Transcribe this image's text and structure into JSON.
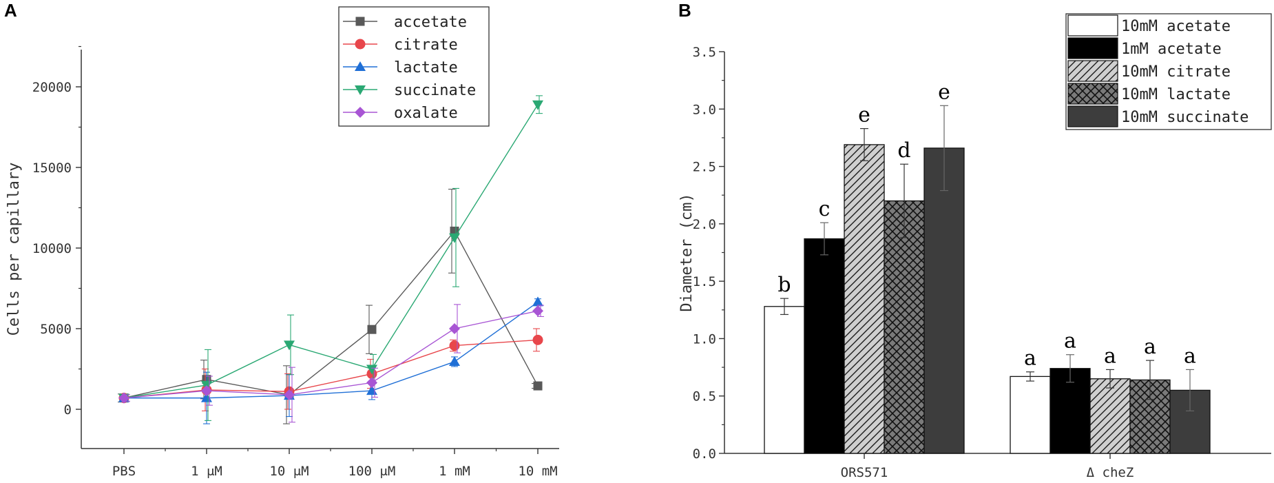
{
  "panels": {
    "a_label": "A",
    "b_label": "B"
  },
  "chart_data": [
    {
      "type": "line",
      "panel": "A",
      "title": "",
      "xlabel": "",
      "ylabel": "Cells per capillary",
      "categories": [
        "PBS",
        "1 μM",
        "10 μM",
        "100 μM",
        "1 mM",
        "10 mM"
      ],
      "ylim": [
        -2500,
        22500
      ],
      "yticks": [
        0,
        5000,
        10000,
        15000,
        20000
      ],
      "legend_position": "top-right",
      "series": [
        {
          "name": "accetate",
          "color": "#595959",
          "marker": "square",
          "values": [
            700,
            1850,
            900,
            4950,
            11050,
            1450
          ],
          "errors": [
            250,
            1200,
            1800,
            1500,
            2600,
            150
          ]
        },
        {
          "name": "citrate",
          "color": "#e8464b",
          "marker": "circle",
          "values": [
            700,
            1200,
            1100,
            2200,
            3950,
            4300
          ],
          "errors": [
            200,
            1300,
            1100,
            900,
            350,
            700
          ]
        },
        {
          "name": "lactate",
          "color": "#1f6fd6",
          "marker": "triangle-up",
          "values": [
            700,
            700,
            850,
            1150,
            2950,
            6650
          ],
          "errors": [
            200,
            1600,
            1300,
            550,
            300,
            200
          ]
        },
        {
          "name": "succinate",
          "color": "#2aa873",
          "marker": "triangle-down",
          "values": [
            700,
            1500,
            4000,
            2500,
            10650,
            18900
          ],
          "errors": [
            200,
            2200,
            1850,
            900,
            3050,
            550
          ]
        },
        {
          "name": "oxalate",
          "color": "#a855d4",
          "marker": "diamond",
          "values": [
            700,
            1150,
            900,
            1650,
            5000,
            6100
          ],
          "errors": [
            200,
            900,
            1700,
            900,
            1500,
            350
          ]
        }
      ]
    },
    {
      "type": "bar",
      "panel": "B",
      "title": "",
      "xlabel": "",
      "ylabel": "Diameter (cm)",
      "categories": [
        "ORS571",
        "Δ cheZ"
      ],
      "ylim": [
        0,
        3.5
      ],
      "yticks": [
        "0.0",
        "0.5",
        "1.0",
        "1.5",
        "2.0",
        "2.5",
        "3.0",
        "3.5"
      ],
      "legend_position": "top-right",
      "series": [
        {
          "name": "10mM acetate",
          "fill": "#ffffff",
          "pattern": "solid",
          "values": [
            1.28,
            0.67
          ],
          "errors": [
            0.07,
            0.04
          ],
          "letters": [
            "b",
            "a"
          ]
        },
        {
          "name": "1mM acetate",
          "fill": "#000000",
          "pattern": "solid",
          "values": [
            1.87,
            0.74
          ],
          "errors": [
            0.14,
            0.12
          ],
          "letters": [
            "c",
            "a"
          ]
        },
        {
          "name": "10mM citrate",
          "fill": "#cfcfcf",
          "pattern": "diagonal",
          "values": [
            2.69,
            0.65
          ],
          "errors": [
            0.14,
            0.08
          ],
          "letters": [
            "e",
            "a"
          ]
        },
        {
          "name": "10mM lactate",
          "fill": "#7a7a7a",
          "pattern": "crosshatch",
          "values": [
            2.2,
            0.64
          ],
          "errors": [
            0.32,
            0.17
          ],
          "letters": [
            "d",
            "a"
          ]
        },
        {
          "name": "10mM succinate",
          "fill": "#3d3d3d",
          "pattern": "solid",
          "values": [
            2.66,
            0.55
          ],
          "errors": [
            0.37,
            0.18
          ],
          "letters": [
            "e",
            "a"
          ]
        }
      ]
    }
  ]
}
